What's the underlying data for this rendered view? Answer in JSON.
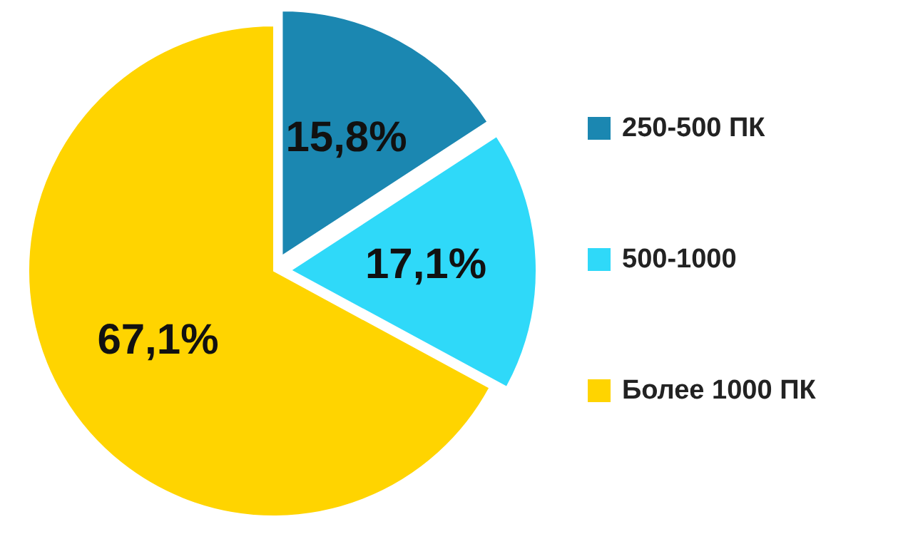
{
  "chart_data": {
    "type": "pie",
    "categories": [
      "250-500 ПК",
      "500-1000",
      "Более 1000 ПК"
    ],
    "values": [
      15.8,
      17.1,
      67.1
    ],
    "colors": [
      "#1b87b1",
      "#2fd9f9",
      "#ffd400"
    ],
    "value_labels": [
      "15,8%",
      "17,1%",
      "67,1%"
    ],
    "legend": "right"
  }
}
